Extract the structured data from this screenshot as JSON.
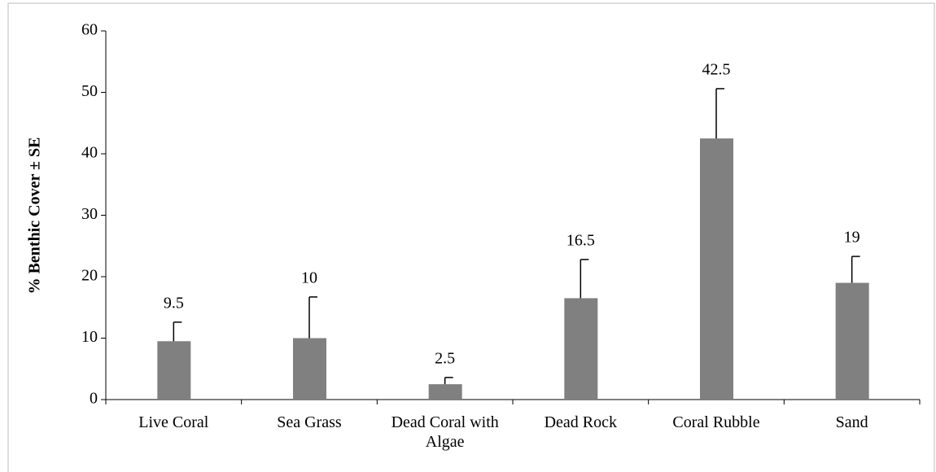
{
  "chart_data": {
    "type": "bar",
    "y_label": "% Benthic Cover ± SE",
    "categories": [
      "Live Coral",
      "Sea Grass",
      "Dead Coral with Algae",
      "Dead Rock",
      "Coral Rubble",
      "Sand"
    ],
    "values": [
      9.5,
      10,
      2.5,
      16.5,
      42.5,
      19
    ],
    "errors": [
      3.1,
      6.7,
      1.1,
      6.3,
      8.1,
      4.3
    ],
    "color": "#808080",
    "ylim": [
      0,
      60
    ],
    "yticks": [
      0,
      10,
      20,
      30,
      40,
      50,
      60
    ],
    "grid": false
  }
}
